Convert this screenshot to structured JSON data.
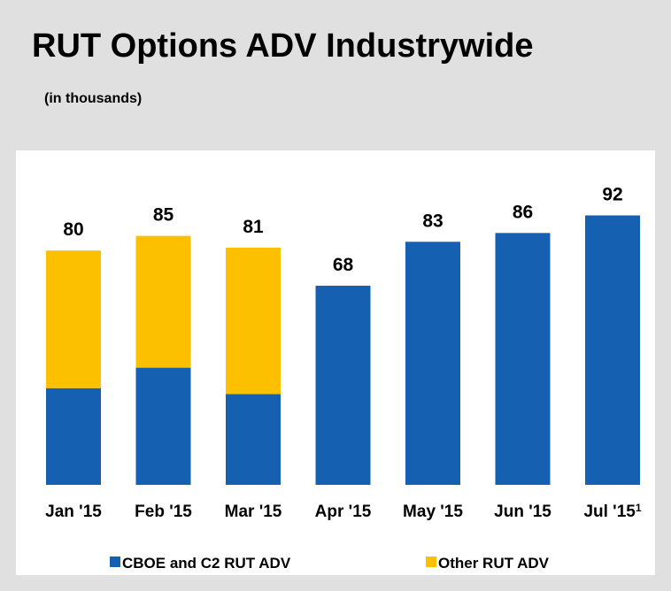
{
  "chart_data": {
    "type": "stacked_bar",
    "title": "RUT Options ADV Industrywide",
    "subtitle": "(in thousands)",
    "categories": [
      "Jan '15",
      "Feb '15",
      "Mar '15",
      "Apr '15",
      "May '15",
      "Jun '15",
      "Jul '15"
    ],
    "footnote_marks": [
      null,
      null,
      null,
      null,
      null,
      null,
      "1"
    ],
    "series": [
      {
        "name": "CBOE and C2 RUT ADV",
        "color": "#1560b0",
        "values": [
          33,
          40,
          31,
          68,
          83,
          86,
          92
        ]
      },
      {
        "name": "Other RUT ADV",
        "color": "#fdc000",
        "values": [
          47,
          45,
          50,
          null,
          null,
          null,
          null
        ]
      }
    ],
    "totals": [
      80,
      85,
      81,
      68,
      83,
      86,
      92
    ],
    "ylim": [
      0,
      100
    ]
  }
}
